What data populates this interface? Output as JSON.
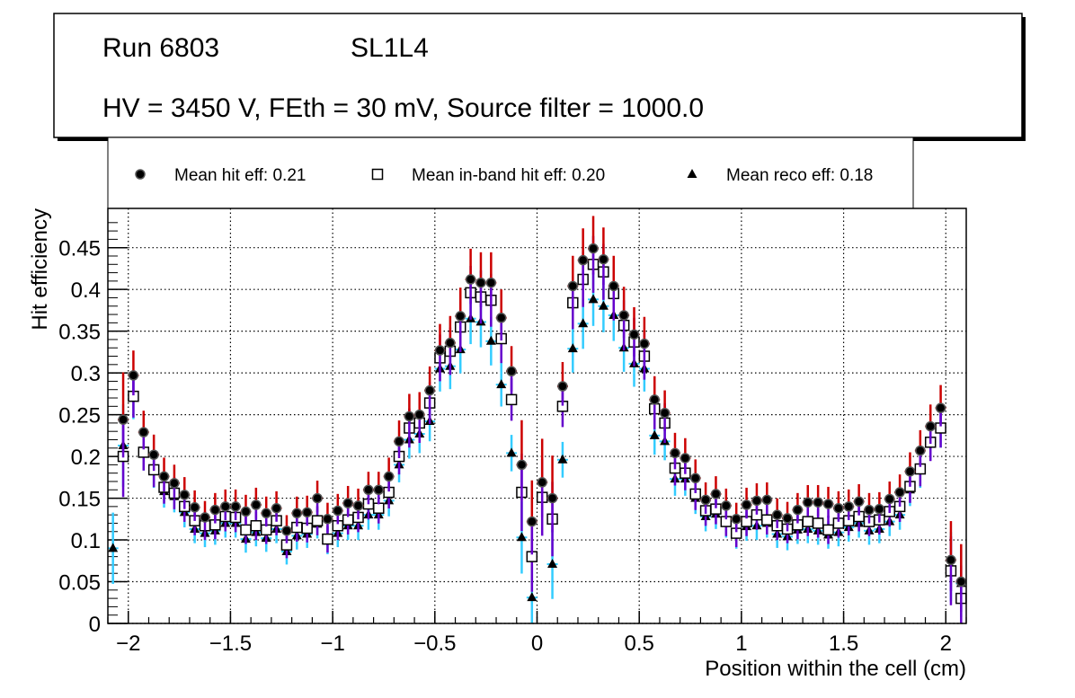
{
  "title_box": {
    "line1_run": "Run 6803",
    "line1_layer": "SL1L4",
    "line2": "HV = 3450 V, FEth = 30 mV, Source filter = 1000.0"
  },
  "chart_data": {
    "type": "scatter",
    "title": "",
    "xlabel": "Position within the cell (cm)",
    "ylabel": "Hit efficiency",
    "xlim": [
      -2.1,
      2.1
    ],
    "ylim": [
      0,
      0.497
    ],
    "grid": true,
    "legend_position": "top",
    "x_ticks": [
      -2,
      -1.5,
      -1,
      -0.5,
      0,
      0.5,
      1,
      1.5,
      2
    ],
    "x_tick_labels": [
      "−2",
      "−1.5",
      "−1",
      "−0.5",
      "0",
      "0.5",
      "1",
      "1.5",
      "2"
    ],
    "y_ticks": [
      0,
      0.05,
      0.1,
      0.15,
      0.2,
      0.25,
      0.3,
      0.35,
      0.4,
      0.45
    ],
    "y_tick_labels": [
      "0",
      "0.05",
      "0.1",
      "0.15",
      "0.2",
      "0.25",
      "0.3",
      "0.35",
      "0.4",
      "0.45"
    ],
    "x_start": -2.075,
    "bin_width": 0.05,
    "series": [
      {
        "name": "Mean hit  eff: 0.21",
        "marker": "circle",
        "color": "#000000",
        "err_up_color": "#cc0000",
        "err_down_color": "#6600cc",
        "values": [
          null,
          0.244,
          0.297,
          0.229,
          0.202,
          0.176,
          0.168,
          0.154,
          0.139,
          0.127,
          0.136,
          0.14,
          0.14,
          0.134,
          0.142,
          0.132,
          0.138,
          0.111,
          0.132,
          0.133,
          0.15,
          0.125,
          0.135,
          0.144,
          0.141,
          0.16,
          0.16,
          0.176,
          0.218,
          0.248,
          0.25,
          0.279,
          0.327,
          0.336,
          0.368,
          0.412,
          0.408,
          0.408,
          0.366,
          0.302,
          0.19,
          0.122,
          0.169,
          0.15,
          0.284,
          0.404,
          0.435,
          0.449,
          0.436,
          0.404,
          0.369,
          0.346,
          0.335,
          0.268,
          0.252,
          0.204,
          0.198,
          0.174,
          0.148,
          0.155,
          0.141,
          0.125,
          0.142,
          0.147,
          0.148,
          0.13,
          0.126,
          0.136,
          0.145,
          0.145,
          0.143,
          0.138,
          0.14,
          0.146,
          0.136,
          0.137,
          0.149,
          0.157,
          0.182,
          0.207,
          0.236,
          0.258,
          0.076,
          0.05
        ]
      },
      {
        "name": "Mean in-band hit eff: 0.20",
        "marker": "open-square",
        "color": "#000000",
        "err_color": "#6600cc",
        "values": [
          null,
          0.2,
          0.272,
          0.205,
          0.184,
          0.163,
          0.156,
          0.14,
          0.123,
          0.117,
          0.118,
          0.128,
          0.127,
          0.112,
          0.117,
          0.112,
          0.123,
          0.094,
          0.115,
          0.114,
          0.123,
          0.101,
          0.117,
          0.124,
          0.127,
          0.143,
          0.138,
          0.157,
          0.2,
          0.234,
          0.24,
          0.264,
          0.318,
          0.326,
          0.355,
          0.396,
          0.391,
          0.387,
          0.341,
          0.268,
          0.157,
          0.08,
          0.151,
          0.125,
          0.26,
          0.384,
          0.412,
          0.43,
          0.421,
          0.395,
          0.357,
          0.337,
          0.32,
          0.257,
          0.24,
          0.186,
          0.18,
          0.155,
          0.135,
          0.137,
          0.122,
          0.108,
          0.122,
          0.13,
          0.124,
          0.117,
          0.113,
          0.118,
          0.122,
          0.12,
          0.112,
          0.12,
          0.123,
          0.128,
          0.122,
          0.124,
          0.134,
          0.14,
          0.164,
          0.185,
          0.217,
          0.234,
          0.063,
          0.03
        ]
      },
      {
        "name": "Mean reco eff: 0.18",
        "marker": "triangle",
        "color": "#000000",
        "err_color": "#33ccff",
        "values": [
          0.09,
          0.213,
          0.27,
          0.205,
          0.183,
          0.158,
          0.152,
          0.133,
          0.113,
          0.108,
          0.111,
          0.12,
          0.12,
          0.101,
          0.109,
          0.102,
          0.113,
          0.086,
          0.105,
          0.107,
          0.119,
          0.099,
          0.108,
          0.117,
          0.117,
          0.13,
          0.13,
          0.147,
          0.19,
          0.22,
          0.227,
          0.242,
          0.305,
          0.308,
          0.328,
          0.365,
          0.361,
          0.338,
          0.286,
          0.204,
          0.103,
          0.031,
          null,
          0.071,
          0.196,
          0.329,
          0.359,
          0.388,
          0.38,
          0.369,
          0.33,
          0.311,
          0.305,
          0.225,
          0.218,
          0.173,
          0.173,
          0.15,
          0.128,
          0.131,
          0.12,
          0.106,
          0.116,
          0.117,
          0.12,
          0.107,
          0.104,
          0.112,
          0.113,
          0.111,
          0.106,
          0.109,
          0.115,
          0.12,
          0.111,
          0.113,
          0.122,
          0.13,
          0.16,
          0.183,
          0.218,
          0.234,
          0.068,
          0.048
        ]
      }
    ]
  }
}
